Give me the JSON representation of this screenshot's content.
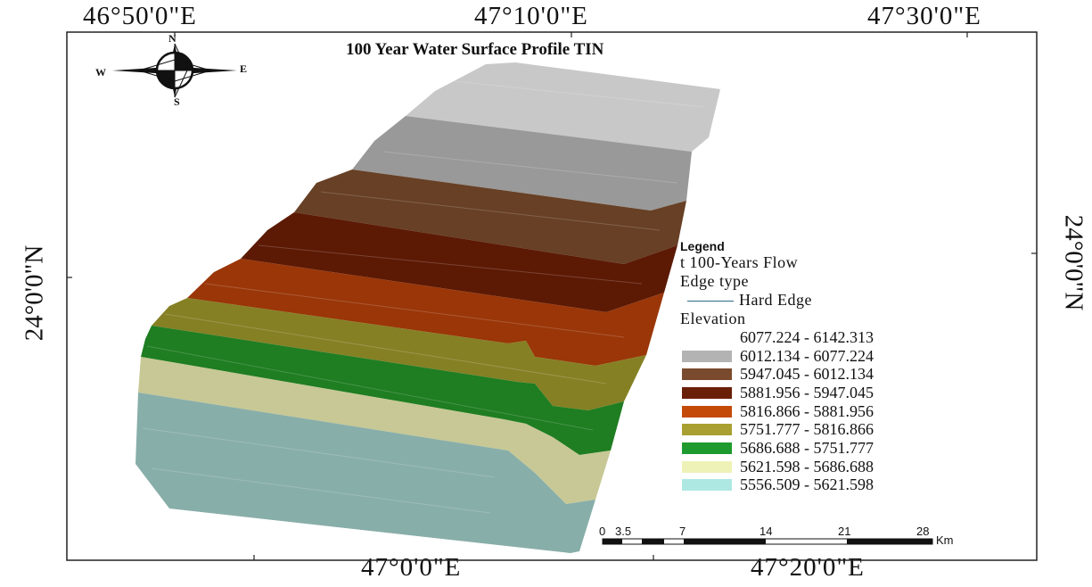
{
  "map": {
    "title": "100 Year Water Surface Profile TIN",
    "coords_top": [
      "46°50'0\"E",
      "47°10'0\"E",
      "47°30'0\"E"
    ],
    "coords_bottom": [
      "47°0'0\"E",
      "47°20'0\"E"
    ],
    "coord_left": "24°0'0\"N",
    "coord_right": "24°0'0\"N"
  },
  "compass": {
    "n": "N",
    "s": "S",
    "e": "E",
    "w": "W"
  },
  "legend": {
    "heading": "Legend",
    "layer": "t 100-Years Flow",
    "edge_type": "Edge type",
    "hard_edge": "Hard Edge",
    "elevation": "Elevation",
    "classes": [
      {
        "label": "6077.224 - 6142.313",
        "color": "#ffffff"
      },
      {
        "label": "6012.134 - 6077.224",
        "color": "#b3b3b3"
      },
      {
        "label": "5947.045 - 6012.134",
        "color": "#7a4a2e"
      },
      {
        "label": "5881.956 - 5947.045",
        "color": "#6a1f07"
      },
      {
        "label": "5816.866 - 5881.956",
        "color": "#c44a08"
      },
      {
        "label": "5751.777 - 5816.866",
        "color": "#a8a030"
      },
      {
        "label": "5686.688 - 5751.777",
        "color": "#1f9a2e"
      },
      {
        "label": "5621.598 - 5686.688",
        "color": "#eef2b6"
      },
      {
        "label": "5556.509 - 5621.598",
        "color": "#aee8e2"
      }
    ]
  },
  "scale": {
    "labels": [
      "0",
      "3.5",
      "7",
      "14",
      "21",
      "28"
    ],
    "unit": "Km"
  }
}
